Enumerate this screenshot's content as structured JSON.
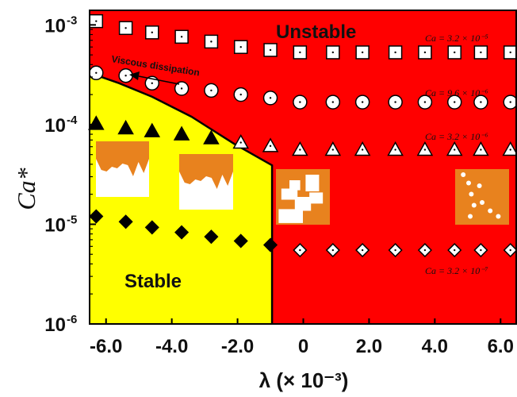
{
  "chart_data": {
    "type": "scatter",
    "title": "",
    "xlabel": "λ (× 10⁻³)",
    "ylabel": "Ca*",
    "xscale": "linear",
    "yscale": "log",
    "xlim": [
      -6.5,
      6.5
    ],
    "ylim": [
      1e-06,
      0.0014
    ],
    "x_ticks": [
      -6,
      -4,
      -2,
      0,
      2,
      4,
      6
    ],
    "x_tick_labels": [
      "-6.0",
      "-4.0",
      "-2.0",
      "0",
      "2.0",
      "4.0",
      "6.0"
    ],
    "y_ticks": [
      1e-06,
      1e-05,
      0.0001,
      0.001
    ],
    "y_tick_labels": [
      {
        "base": "10",
        "exp": "-6"
      },
      {
        "base": "10",
        "exp": "-5"
      },
      {
        "base": "10",
        "exp": "-4"
      },
      {
        "base": "10",
        "exp": "-3"
      }
    ],
    "regions": [
      {
        "label": "Stable",
        "color": "#ffff00"
      },
      {
        "label": "Unstable",
        "color": "#ff0000"
      }
    ],
    "boundary": [
      {
        "x": -6.5,
        "y": 0.00033
      },
      {
        "x": -5.6,
        "y": 0.00026
      },
      {
        "x": -4.6,
        "y": 0.00019
      },
      {
        "x": -3.4,
        "y": 0.00012
      },
      {
        "x": -2.1,
        "y": 6.4e-05
      },
      {
        "x": -0.95,
        "y": 3.9e-05
      },
      {
        "x": -0.95,
        "y": 1e-06
      }
    ],
    "annotations": [
      {
        "text": "Viscous dissipation",
        "arrow": "pointing toward decreasing λ"
      }
    ],
    "series": [
      {
        "name": "Ca = 3.2 × 10⁻⁵",
        "marker": "square",
        "x": [
          -6.3,
          -5.4,
          -4.6,
          -3.7,
          -2.8,
          -1.9,
          -1.0,
          -0.1,
          0.9,
          1.8,
          2.8,
          3.7,
          4.6,
          5.4,
          6.3
        ],
        "y": [
          0.00109,
          0.00093,
          0.00084,
          0.00076,
          0.00068,
          0.0006,
          0.00056,
          0.00053,
          0.00053,
          0.00053,
          0.00053,
          0.00053,
          0.00053,
          0.00053,
          0.00053
        ]
      },
      {
        "name": "Ca = 9.6 × 10⁻⁶",
        "marker": "circle",
        "x": [
          -6.3,
          -5.4,
          -4.6,
          -3.7,
          -2.8,
          -1.9,
          -1.0,
          -0.1,
          0.9,
          1.8,
          2.8,
          3.7,
          4.6,
          5.4,
          6.3
        ],
        "y": [
          0.00033,
          0.00031,
          0.00026,
          0.00023,
          0.00022,
          0.0002,
          0.000185,
          0.000168,
          0.000168,
          0.000168,
          0.000168,
          0.000168,
          0.000168,
          0.000168,
          0.000168
        ]
      },
      {
        "name": "Ca = 3.2 × 10⁻⁶",
        "marker": "triangle",
        "x": [
          -6.3,
          -5.4,
          -4.6,
          -3.7,
          -2.8,
          -1.9,
          -1.0,
          -0.1,
          0.9,
          1.8,
          2.8,
          3.7,
          4.6,
          5.4,
          6.3
        ],
        "y": [
          0.000102,
          9.2e-05,
          8.6e-05,
          8e-05,
          7.3e-05,
          6.6e-05,
          6.1e-05,
          5.6e-05,
          5.6e-05,
          5.6e-05,
          5.6e-05,
          5.6e-05,
          5.6e-05,
          5.6e-05,
          5.6e-05
        ]
      },
      {
        "name": "Ca = 3.2 × 10⁻⁷",
        "marker": "diamond",
        "x": [
          -6.3,
          -5.4,
          -4.6,
          -3.7,
          -2.8,
          -1.9,
          -1.0,
          -0.1,
          0.9,
          1.8,
          2.8,
          3.7,
          4.6,
          5.4,
          6.3
        ],
        "y": [
          1.2e-05,
          1.06e-05,
          9.3e-06,
          8.3e-06,
          7.5e-06,
          6.8e-06,
          6.2e-06,
          5.5e-06,
          5.5e-06,
          5.5e-06,
          5.5e-06,
          5.5e-06,
          5.5e-06,
          5.5e-06,
          5.5e-06
        ]
      }
    ]
  },
  "colors": {
    "stable": "#ffff00",
    "unstable": "#ff0000",
    "inset_bg": "#e8821e"
  }
}
